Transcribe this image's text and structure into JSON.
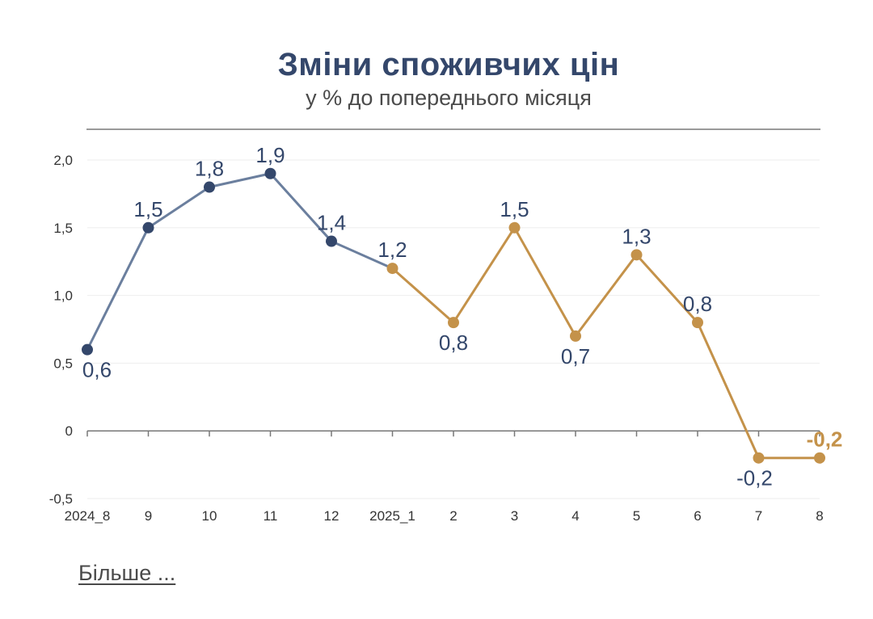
{
  "header": {
    "title": "Зміни споживчих цін",
    "subtitle": "у % до попереднього місяця"
  },
  "footer": {
    "more_link": "Більше ..."
  },
  "colors": {
    "series_a": "#34476b",
    "series_a_line": "#6b7f9e",
    "series_b": "#c4924a",
    "label_highlight": "#c4924a",
    "label": "#34476b",
    "grid": "#eeeeee",
    "axis": "#777777"
  },
  "chart_data": {
    "type": "line",
    "title": "Зміни споживчих цін",
    "subtitle": "у % до попереднього місяця",
    "xlabel": "",
    "ylabel": "",
    "categories": [
      "2024_8",
      "9",
      "10",
      "11",
      "12",
      "2025_1",
      "2",
      "3",
      "4",
      "5",
      "6",
      "7",
      "8"
    ],
    "ylim": [
      -0.5,
      2.0
    ],
    "yticks": [
      -0.5,
      0,
      0.5,
      1.0,
      1.5,
      2.0
    ],
    "ytick_labels": [
      "-0,5",
      "0",
      "0,5",
      "1,0",
      "1,5",
      "2,0"
    ],
    "grid": true,
    "series": [
      {
        "values": [
          0.6,
          1.5,
          1.8,
          1.9,
          1.4,
          1.2,
          null,
          null,
          null,
          null,
          null,
          null,
          null
        ]
      },
      {
        "values": [
          null,
          null,
          null,
          null,
          null,
          1.2,
          0.8,
          1.5,
          0.7,
          1.3,
          0.8,
          -0.2,
          -0.2
        ]
      }
    ],
    "data_labels": [
      "0,6",
      "1,5",
      "1,8",
      "1,9",
      "1,4",
      "1,2",
      "0,8",
      "1,5",
      "0,7",
      "1,3",
      "0,8",
      "-0,2",
      "-0,2"
    ]
  }
}
